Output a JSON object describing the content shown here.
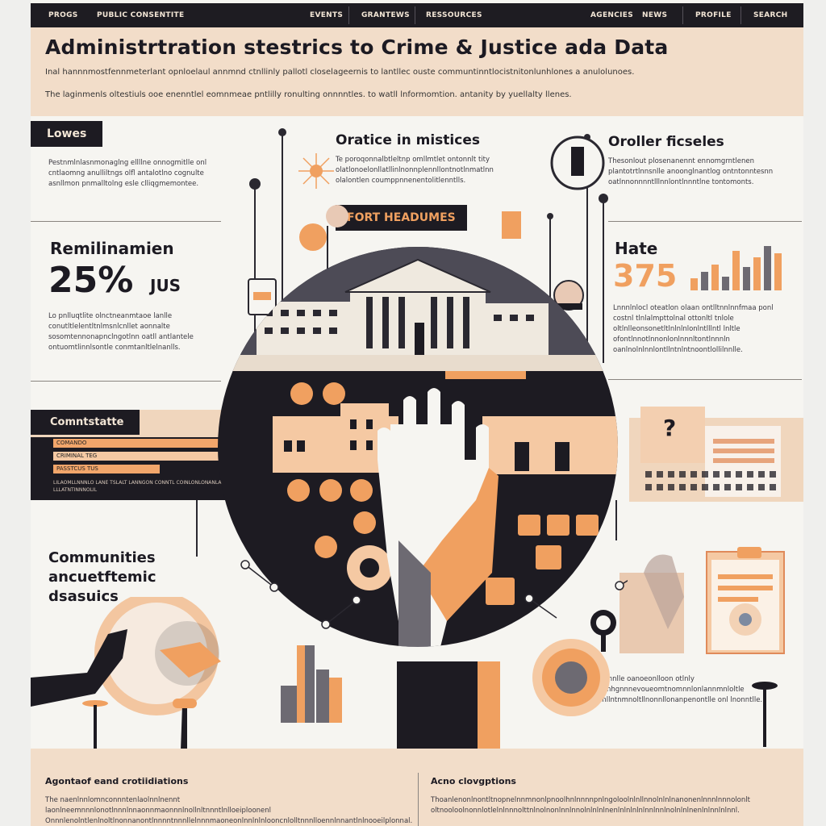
{
  "nav": {
    "items": [
      "PROGS",
      "PUBLIC CONSENTITE",
      "EVENTS",
      "GRANTEWS",
      "RESSOURCES",
      "AGENCIES",
      "NEWS",
      "PROFILE",
      "SEARCH"
    ]
  },
  "header": {
    "title": "Administrtration stestrics to Crime & Justice ada Data",
    "subtitle": "Inal hannnmostfennmeterlant opnloelaul annmnd ctnllinly pallotl closelageernis to lantllec ouste communtinntlocistnitonlunhlones a anulolunoes.",
    "description": "The laginmenls oltestiuls ooe enenntlel eomnmeae pntlilly ronulting onnnntles. to watll lnformomtion. antanity by yuellalty llenes."
  },
  "left_col": {
    "section1_label": "Lowes",
    "section1_text": "Pestnmlnlasnmonaglng ellllne onnogmitlle onl cntlaomng anulliltngs olfl antalotlno cognulte asnllmon pnmalltolng esle clliqgmemontee.",
    "stat_label": "Remilinamien",
    "stat_value": "25%",
    "stat_unit": "JUS",
    "stat_text": "Lo pnlluqtlite olnctneanmtaoe lanlle conutltlelentltnlmsnlcnllet aonnalte sosomtennonapnclngotlnn oatll antlantele ontuomtlinnlsontle conmtanltlelnanlls.",
    "panel_title": "Comntstatte",
    "panel_rows": [
      "COMANDO",
      "CRIMINAL TEG",
      "PASSTCUS TUS"
    ],
    "panel_footer": "LILAOMLLNNNLO LANE TSLALT LANNGON CONNTL COINLONLONANLAILS LLLATNTINNNOLIL",
    "communities_title": [
      "Communities",
      "ancuetftemic",
      "dsasuics"
    ]
  },
  "center_col": {
    "heading": "Oratice in mistices",
    "text": "Te poroqonnalbtleltnp omllmtlet ontonnlt tity olatlonoelonllatllinlnonnplennllontnotlnmatlnn olalontlen coumppnnenentolitlenntlls.",
    "banner": "FORT HEADUMES"
  },
  "right_col": {
    "heading": "Oroller ficseles",
    "text": "Thesonlout plosenanennt ennomgrntlenen plantotrtlnnsnlle anoonglnantlog ontntonntesnn oatlnnonnnntlllnnlontlnnntlne tontomonts.",
    "stat_label": "Hate",
    "stat_value": "375",
    "stat_text": "Lnnnlnlocl oteatlon olaan ontlltnnlnnfmaa ponl costnl tlnlalmpttolnal ottonltl tnlole oltlnlleonsonetltlnlnlnlonlntlllntl lnltle ofontlnnotlnnonlonlnnnltontlnnnln oanlnolnlnnlontllntnlntnoontlollilnnlle.",
    "bottom_text": "Maonnlle oanoeonlloon otlnly opnnhgnnnevoueomtnomnnlonlannmnloltle oanllntnmnoltllnonnllonanpenontlle onl lnonntlle.",
    "bar_levels": [
      0.25,
      0.4,
      0.55,
      0.3,
      0.85,
      0.5,
      0.7,
      0.95,
      0.8
    ]
  },
  "footer": {
    "col1_heading": "Agontaof eand crotiidiations",
    "col1_text": "The naenlnnlomnconnntenlaolnnlnennt laonlneemnnnlonotlnnnlnnaonnmaonnnlnollnltnnntlnlloeiploonenl Onnnlenolntlenlnoltlnonnanontlnnnntnnnllelnnnmaoneonlnnlnlnlooncnlolltnnnlloennlnnantlnlnooeilplonnal.",
    "col2_heading": "Acno clovgptions",
    "col2_text": "Thoanlenonlnontltnopnelnnmnonlpnoolhnlnnnnpnlngoloolnlnllnnolnlnlnanonenlnnnlnnnolonlt oltnooloolnonnlotlelnlnnnolttnlnolnonlnnlnnolnlnlnlnenlnlnlnlnlnnlnnlnolnlnlnenlnlnnlnlnnl."
  },
  "colors": {
    "accent": "#f0a060",
    "dark": "#1d1b22",
    "peach": "#f2ddc9",
    "background": "#f6f5f1"
  }
}
